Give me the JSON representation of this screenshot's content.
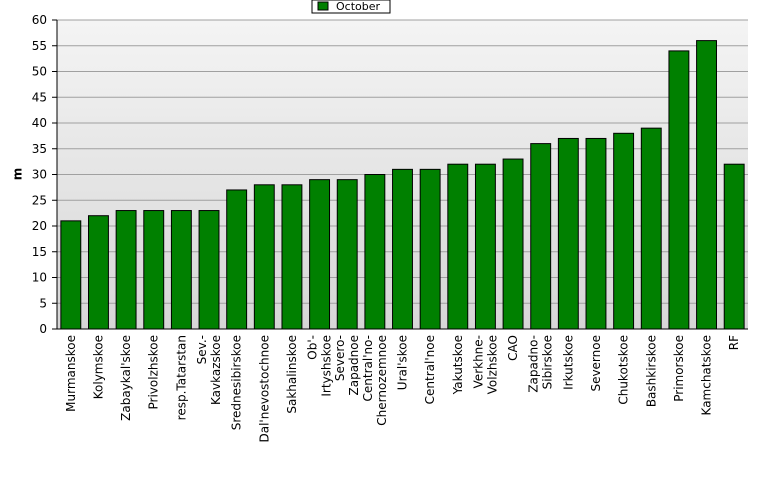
{
  "chart_data": {
    "type": "bar",
    "y_label": "m",
    "categories": [
      "Murmanskoe",
      "Kolymskoe",
      "Zabaykal'skoe",
      "Privolzhskoe",
      "resp.Tatarstan",
      "Sev.-\nKavkazskoe",
      "Srednesibirskoe",
      "Dal'nevostochnoe",
      "Sakhalinskoe",
      "Ob'-\nIrtyshskoe",
      "Severo-\nZapadnoe",
      "Central'no-\nChernozemnoe",
      "Ural'skoe",
      "Central'noe",
      "Yakutskoe",
      "Verkhne-\nVolzhskoe",
      "CAO",
      "Zapadno-\nSibirskoe",
      "Irkutskoe",
      "Severnoe",
      "Chukotskoe",
      "Bashkirskoe",
      "Primorskoe",
      "Kamchatskoe",
      "RF"
    ],
    "series": [
      {
        "name": "October",
        "color": "#008000",
        "values": [
          21,
          22,
          23,
          23,
          23,
          23,
          27,
          28,
          28,
          29,
          29,
          30,
          31,
          31,
          32,
          32,
          33,
          36,
          37,
          37,
          38,
          39,
          54,
          56,
          32
        ]
      }
    ],
    "ylim": [
      0,
      60
    ],
    "yticks": [
      0,
      5,
      10,
      15,
      20,
      25,
      30,
      35,
      40,
      45,
      50,
      55,
      60
    ],
    "grid": true
  }
}
